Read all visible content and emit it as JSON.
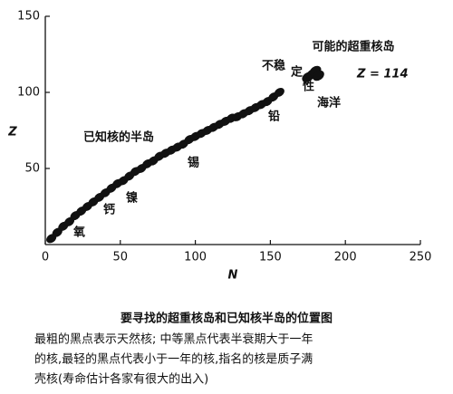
{
  "chart_data": {
    "type": "scatter",
    "x_label": "N",
    "y_label": "Z",
    "xlim": [
      0,
      250
    ],
    "xticks": [
      0,
      50,
      100,
      150,
      200,
      250
    ],
    "ylim": [
      0,
      150
    ],
    "yticks": [
      50,
      100,
      150
    ],
    "series": [
      {
        "color": "#111111",
        "x": [
          4,
          8,
          12,
          16,
          20,
          24,
          28,
          32,
          36,
          40,
          44,
          48,
          52,
          56,
          60,
          64,
          68,
          72,
          76,
          80,
          84,
          88,
          92,
          96,
          100,
          104,
          108,
          112,
          116,
          120,
          124,
          128,
          132,
          136,
          140,
          144,
          148,
          152,
          156
        ],
        "values": [
          4,
          8,
          12,
          15,
          19,
          22,
          25,
          28,
          31,
          34,
          37,
          40,
          42,
          45,
          48,
          50,
          53,
          55,
          58,
          60,
          62,
          64,
          66,
          69,
          71,
          73,
          75,
          77,
          79,
          81,
          83,
          84,
          86,
          88,
          90,
          92,
          94,
          97,
          100
        ]
      },
      {
        "color": "#111111",
        "x": [
          175,
          178,
          180,
          182
        ],
        "values": [
          110,
          112,
          114,
          111
        ]
      }
    ],
    "annotations": {
      "island": "可能的超重核岛",
      "z114": "Z = 114",
      "ocean": [
        "不稳",
        "定",
        "性",
        "海洋"
      ],
      "peninsula": "已知核的半岛",
      "elements": [
        "铅",
        "锡",
        "镍",
        "钙",
        "氧"
      ]
    },
    "caption": {
      "title": "要寻找的超重核岛和已知核半岛的位置图",
      "lines": [
        "最粗的黑点表示天然核; 中等黑点代表半衰期大于一年",
        "的核,最轻的黑点代表小于一年的核,指名的核是质子满",
        "壳核(寿命估计各家有很大的出入)"
      ]
    }
  }
}
